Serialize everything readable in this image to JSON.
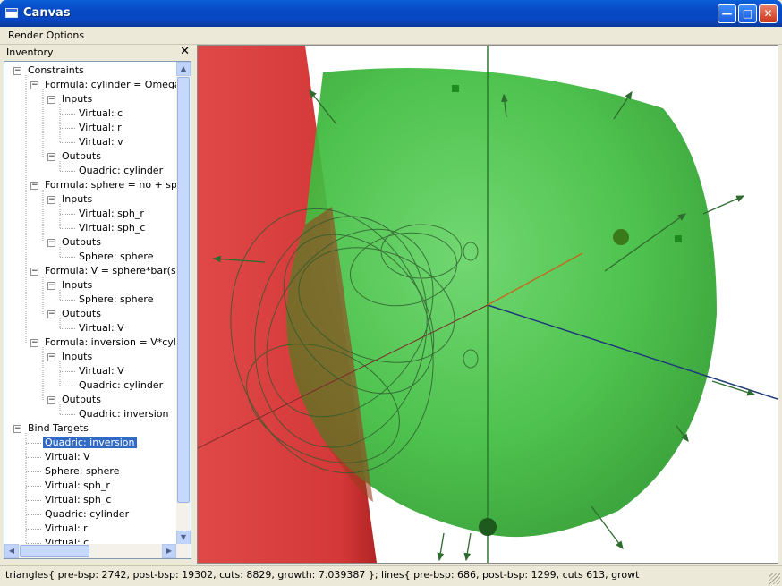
{
  "window": {
    "title": "Canvas"
  },
  "menu": {
    "items": [
      "Render Options"
    ]
  },
  "dock": {
    "title": "Inventory",
    "close_glyph": "✕"
  },
  "tree": {
    "nodes": [
      {
        "label": "Constraints",
        "depth": 0,
        "expander": "−"
      },
      {
        "label": "Formula: cylinder = Omega - v",
        "depth": 1,
        "expander": "−"
      },
      {
        "label": "Inputs",
        "depth": 2,
        "expander": "−"
      },
      {
        "label": "Virtual: c",
        "depth": 3,
        "expander": ""
      },
      {
        "label": "Virtual: r",
        "depth": 3,
        "expander": ""
      },
      {
        "label": "Virtual: v",
        "depth": 3,
        "expander": ""
      },
      {
        "label": "Outputs",
        "depth": 2,
        "expander": "−"
      },
      {
        "label": "Quadric: cylinder",
        "depth": 3,
        "expander": ""
      },
      {
        "label": "Formula: sphere = no + sph_c",
        "depth": 1,
        "expander": "−"
      },
      {
        "label": "Inputs",
        "depth": 2,
        "expander": "−"
      },
      {
        "label": "Virtual: sph_r",
        "depth": 3,
        "expander": ""
      },
      {
        "label": "Virtual: sph_c",
        "depth": 3,
        "expander": ""
      },
      {
        "label": "Outputs",
        "depth": 2,
        "expander": "−"
      },
      {
        "label": "Sphere: sphere",
        "depth": 3,
        "expander": ""
      },
      {
        "label": "Formula: V = sphere*bar(sphe",
        "depth": 1,
        "expander": "−"
      },
      {
        "label": "Inputs",
        "depth": 2,
        "expander": "−"
      },
      {
        "label": "Sphere: sphere",
        "depth": 3,
        "expander": ""
      },
      {
        "label": "Outputs",
        "depth": 2,
        "expander": "−"
      },
      {
        "label": "Virtual: V",
        "depth": 3,
        "expander": ""
      },
      {
        "label": "Formula: inversion = V*cylinde",
        "depth": 1,
        "expander": "−"
      },
      {
        "label": "Inputs",
        "depth": 2,
        "expander": "−"
      },
      {
        "label": "Virtual: V",
        "depth": 3,
        "expander": ""
      },
      {
        "label": "Quadric: cylinder",
        "depth": 3,
        "expander": ""
      },
      {
        "label": "Outputs",
        "depth": 2,
        "expander": "−"
      },
      {
        "label": "Quadric: inversion",
        "depth": 3,
        "expander": ""
      },
      {
        "label": "Bind Targets",
        "depth": 0,
        "expander": "−"
      },
      {
        "label": "Quadric: inversion",
        "depth": 1,
        "expander": "",
        "selected": true
      },
      {
        "label": "Virtual: V",
        "depth": 1,
        "expander": ""
      },
      {
        "label": "Sphere: sphere",
        "depth": 1,
        "expander": ""
      },
      {
        "label": "Virtual: sph_r",
        "depth": 1,
        "expander": ""
      },
      {
        "label": "Virtual: sph_c",
        "depth": 1,
        "expander": ""
      },
      {
        "label": "Quadric: cylinder",
        "depth": 1,
        "expander": ""
      },
      {
        "label": "Virtual: r",
        "depth": 1,
        "expander": ""
      },
      {
        "label": "Virtual: c",
        "depth": 1,
        "expander": ""
      }
    ]
  },
  "scrollbars": {
    "up": "▲",
    "down": "▼",
    "left": "◀",
    "right": "▶"
  },
  "status": {
    "text": "triangles{ pre-bsp: 2742, post-bsp: 19302, cuts: 8829, growth: 7.039387 }; lines{ pre-bsp: 686, post-bsp: 1299, cuts 613, growt"
  },
  "colors": {
    "cylinder": "#d02a2a",
    "sphere": "#33b533",
    "selection": "#316ac5",
    "titlebar": "#0848c4"
  },
  "icons": {
    "minimize": "minimize-icon",
    "maximize": "maximize-icon",
    "close": "close-icon"
  }
}
